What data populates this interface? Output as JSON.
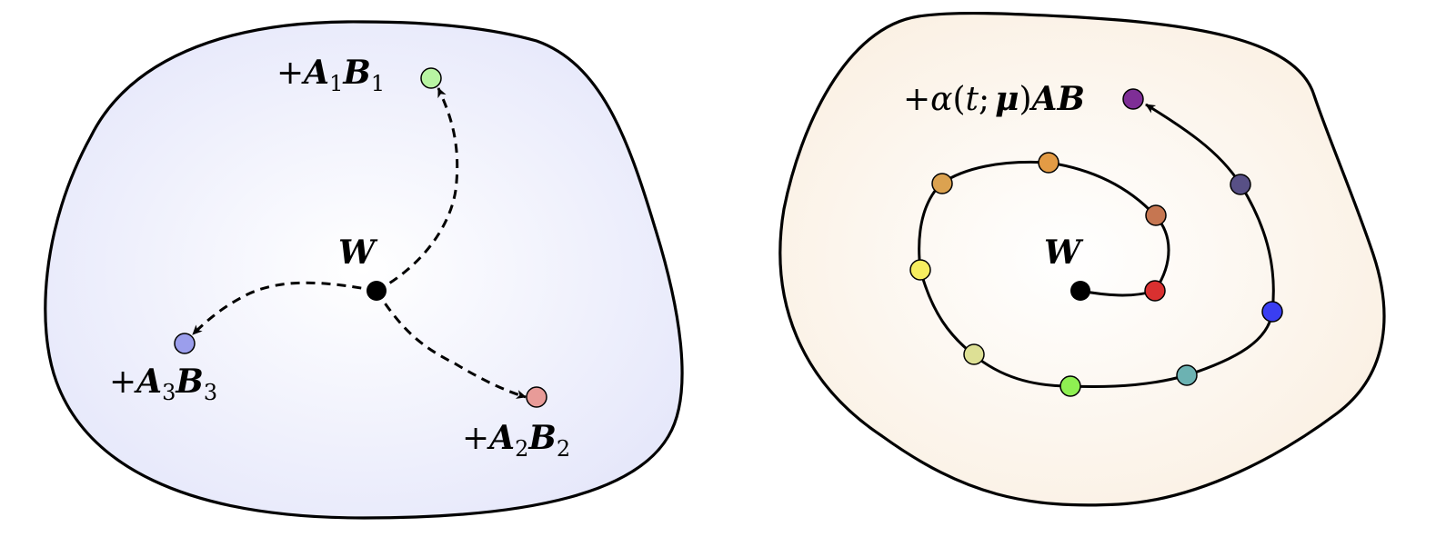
{
  "left_panel": {
    "fill_color": "#e4e6fa",
    "center_label": "W",
    "targets": [
      {
        "matrix_a": "A",
        "index_a": "1",
        "matrix_b": "B",
        "index_b": "1",
        "color": "#b8f5a3"
      },
      {
        "matrix_a": "A",
        "index_a": "2",
        "matrix_b": "B",
        "index_b": "2",
        "color": "#e89b98"
      },
      {
        "matrix_a": "A",
        "index_a": "3",
        "matrix_b": "B",
        "index_b": "3",
        "color": "#9b9eec"
      }
    ],
    "plus_sign": "+"
  },
  "right_panel": {
    "fill_color": "#faefe1",
    "center_label": "W",
    "endpoint_label": {
      "prefix": "+",
      "alpha": "α",
      "open_paren": "(",
      "t": "t",
      "semicolon": ";",
      "mu": "μ",
      "close_paren": ")",
      "matrices": "AB"
    },
    "trajectory_point_colors": [
      "#d93030",
      "#c67651",
      "#e39b45",
      "#eca44a",
      "#dba250",
      "#f7ee60",
      "#dde095",
      "#8ff052",
      "#6cb2b2",
      "#3a3ef2",
      "#585086",
      "#7e2e96"
    ]
  }
}
